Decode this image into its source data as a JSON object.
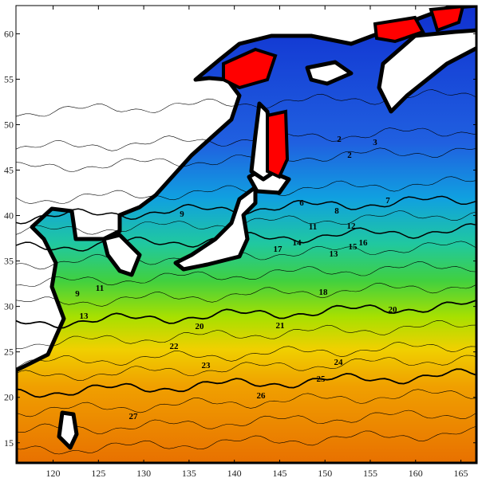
{
  "map": {
    "xlim": [
      115.9,
      166.8
    ],
    "ylim": [
      12.7,
      63.1
    ],
    "xticks": [
      120,
      125,
      130,
      135,
      140,
      145,
      150,
      155,
      160,
      165
    ],
    "yticks": [
      15,
      20,
      25,
      30,
      35,
      40,
      45,
      50,
      55,
      60
    ],
    "contour_labels": [
      "2",
      "3",
      "2",
      "6",
      "8",
      "7",
      "9",
      "11",
      "12",
      "13",
      "14",
      "15",
      "16",
      "17",
      "18",
      "20",
      "20",
      "21",
      "22",
      "23",
      "24",
      "25",
      "26",
      "27",
      "9",
      "11",
      "13"
    ]
  }
}
